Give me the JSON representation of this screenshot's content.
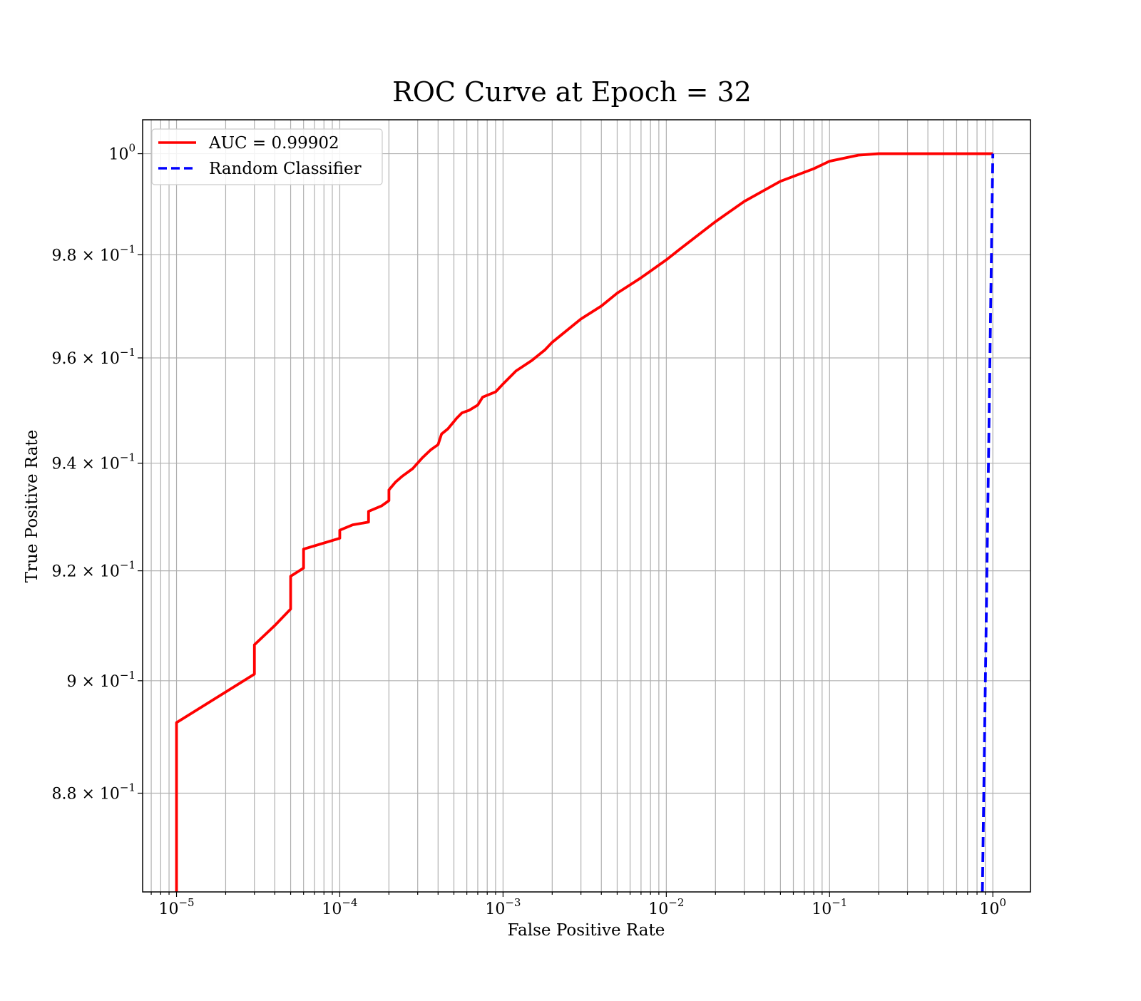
{
  "chart_data": {
    "type": "line",
    "title": "ROC Curve at Epoch = 32",
    "xlabel": "False Positive Rate",
    "ylabel": "True Positive Rate",
    "xscale": "log",
    "yscale": "log",
    "xlim": [
      6.2e-06,
      1.7
    ],
    "ylim": [
      0.8628,
      1.0068
    ],
    "grid": "both",
    "legend_position": "upper-left",
    "x_ticks": [
      {
        "value": 1e-05,
        "base": "10",
        "exp": "−5"
      },
      {
        "value": 0.0001,
        "base": "10",
        "exp": "−4"
      },
      {
        "value": 0.001,
        "base": "10",
        "exp": "−3"
      },
      {
        "value": 0.01,
        "base": "10",
        "exp": "−2"
      },
      {
        "value": 0.1,
        "base": "10",
        "exp": "−1"
      },
      {
        "value": 1,
        "base": "10",
        "exp": "0"
      }
    ],
    "y_ticks": [
      {
        "value": 0.88,
        "mant": "8.8 × 10",
        "exp": "−1"
      },
      {
        "value": 0.9,
        "mant": "9 × 10",
        "exp": "−1"
      },
      {
        "value": 0.92,
        "mant": "9.2 × 10",
        "exp": "−1"
      },
      {
        "value": 0.94,
        "mant": "9.4 × 10",
        "exp": "−1"
      },
      {
        "value": 0.96,
        "mant": "9.6 × 10",
        "exp": "−1"
      },
      {
        "value": 0.98,
        "mant": "9.8 × 10",
        "exp": "−1"
      },
      {
        "value": 1.0,
        "mant": "10",
        "exp": "0"
      }
    ],
    "series": [
      {
        "name": "AUC = 0.99902",
        "color": "#ff0000",
        "dash": "solid",
        "x": [
          1e-05,
          1e-05,
          1e-05,
          3e-05,
          3e-05,
          4e-05,
          5e-05,
          5e-05,
          6e-05,
          6e-05,
          0.0001,
          0.0001,
          0.00012,
          0.00015,
          0.00015,
          0.00018,
          0.0002,
          0.0002,
          0.00022,
          0.00024,
          0.00028,
          0.00032,
          0.00036,
          0.0004,
          0.00042,
          0.00046,
          0.00052,
          0.00056,
          0.00062,
          0.0007,
          0.00075,
          0.0009,
          0.001,
          0.0012,
          0.0015,
          0.0018,
          0.002,
          0.003,
          0.004,
          0.005,
          0.007,
          0.01,
          0.012,
          0.02,
          0.03,
          0.05,
          0.08,
          0.1,
          0.15,
          0.2,
          1
        ],
        "y": [
          0.8628,
          0.87,
          0.8925,
          0.9012,
          0.9065,
          0.91,
          0.913,
          0.919,
          0.9205,
          0.924,
          0.926,
          0.9275,
          0.9285,
          0.929,
          0.931,
          0.932,
          0.933,
          0.935,
          0.9365,
          0.9375,
          0.939,
          0.941,
          0.9425,
          0.9435,
          0.9455,
          0.9465,
          0.9485,
          0.9495,
          0.95,
          0.951,
          0.9525,
          0.9535,
          0.955,
          0.9575,
          0.9595,
          0.9615,
          0.963,
          0.9675,
          0.97,
          0.9725,
          0.9755,
          0.979,
          0.981,
          0.9865,
          0.9905,
          0.9945,
          0.997,
          0.9985,
          0.9997,
          1.0,
          1.0
        ]
      },
      {
        "name": "Random Classifier",
        "color": "#0000ff",
        "dash": "dashed",
        "x": [
          0.8628,
          1
        ],
        "y": [
          0.8628,
          1
        ]
      }
    ]
  }
}
